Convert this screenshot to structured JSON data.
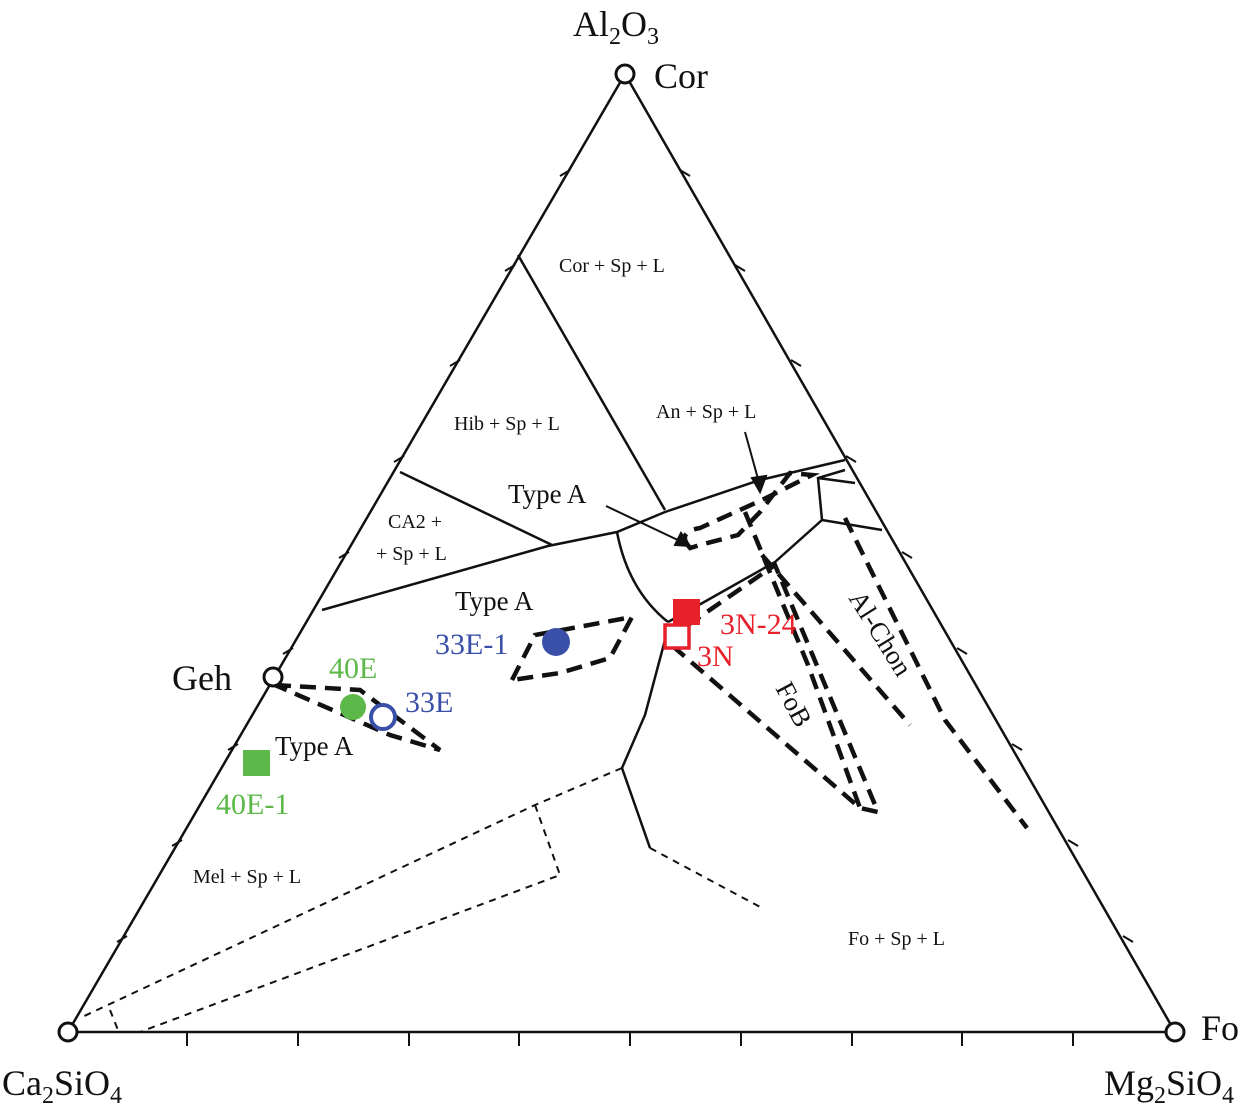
{
  "apices": {
    "top": {
      "formula": "Al",
      "sub1": "2",
      "mid": "O",
      "sub2": "3",
      "mineral": "Cor"
    },
    "left": {
      "formula": "Ca",
      "sub1": "2",
      "mid": "SiO",
      "sub2": "4"
    },
    "right": {
      "formula": "Mg",
      "sub1": "2",
      "mid": "SiO",
      "sub2": "4",
      "mineral": "Fo"
    },
    "side_point": "Geh"
  },
  "fields": {
    "cor_sp_l": "Cor + Sp + L",
    "hib_sp_l": "Hib + Sp + L",
    "an_sp_l": "An + Sp + L",
    "ca2_line1": "CA2 +",
    "ca2_line2": "+ Sp + L",
    "mel_sp_l": "Mel + Sp + L",
    "fo_sp_l": "Fo + Sp + L"
  },
  "regions": {
    "type_a_1": "Type A",
    "type_a_2": "Type A",
    "type_a_3": "Type A",
    "fob": "FoB",
    "al_chon": "Al-Chon"
  },
  "samples": {
    "s_40e": {
      "label": "40E",
      "color": "#5cb848"
    },
    "s_40e_1": {
      "label": "40E-1",
      "color": "#5cb848"
    },
    "s_33e": {
      "label": "33E",
      "color": "#3a4fa8"
    },
    "s_33e_1": {
      "label": "33E-1",
      "color": "#3a4fa8"
    },
    "s_3n_24": {
      "label": "3N-24",
      "color": "#e8202a"
    },
    "s_3n": {
      "label": "3N",
      "color": "#e8202a"
    }
  }
}
